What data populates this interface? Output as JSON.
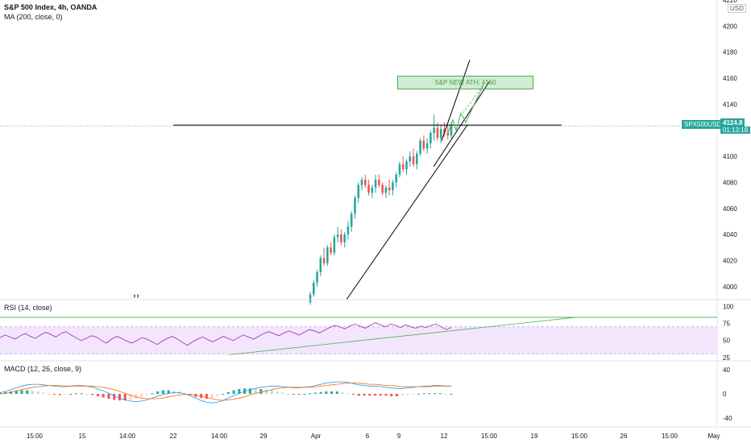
{
  "header": {
    "title": "S&P 500 Index, 4h, OANDA",
    "indicator": "MA (200, close, 0)",
    "unit": "USD"
  },
  "price_tag": {
    "symbol": "SPX500USD",
    "value": "4124.8",
    "countdown": "01:13:18"
  },
  "annotation": {
    "text": "S&P NEW ATH: 4160"
  },
  "panes": {
    "rsi_label": "RSI (14, close)",
    "macd_label": "MACD (12, 26, close, 9)"
  },
  "colors": {
    "up": "#26a69a",
    "down": "#ef5350",
    "rsi_line": "#9c27b0",
    "rsi_band": "#f3e5fc",
    "macd_line": "#2196f3",
    "signal_line": "#ff6d00",
    "trendline": "#000000",
    "green_line": "#4caf50"
  },
  "chart_data": [
    {
      "type": "candlestick",
      "title": "S&P 500 Index, 4h, OANDA",
      "ylim": [
        3990,
        4220
      ],
      "y_ticks": [
        4220,
        4200,
        4180,
        4160,
        4140,
        4120,
        4100,
        4080,
        4060,
        4040,
        4020,
        4000
      ],
      "x_ticks": [
        "15:00",
        "15",
        "14:00",
        "22",
        "14:00",
        "29",
        "Apr",
        "6",
        "9",
        "12",
        "15:00",
        "19",
        "15:00",
        "26",
        "15:00",
        "May"
      ],
      "resistance_level": 4124,
      "last_price": 4124.8,
      "target_label": "S&P NEW ATH: 4160",
      "candles": [
        [
          3988,
          3996,
          3986,
          3994
        ],
        [
          3994,
          4005,
          3992,
          4003
        ],
        [
          4003,
          4013,
          4000,
          4011
        ],
        [
          4011,
          4024,
          4008,
          4022
        ],
        [
          4022,
          4030,
          4016,
          4018
        ],
        [
          4018,
          4032,
          4016,
          4030
        ],
        [
          4030,
          4034,
          4024,
          4026
        ],
        [
          4026,
          4040,
          4024,
          4038
        ],
        [
          4038,
          4046,
          4034,
          4040
        ],
        [
          4040,
          4044,
          4032,
          4034
        ],
        [
          4034,
          4042,
          4030,
          4040
        ],
        [
          4040,
          4050,
          4036,
          4046
        ],
        [
          4046,
          4058,
          4042,
          4056
        ],
        [
          4056,
          4070,
          4052,
          4068
        ],
        [
          4068,
          4080,
          4064,
          4078
        ],
        [
          4078,
          4084,
          4074,
          4082
        ],
        [
          4082,
          4086,
          4076,
          4078
        ],
        [
          4078,
          4082,
          4070,
          4072
        ],
        [
          4072,
          4078,
          4068,
          4076
        ],
        [
          4076,
          4086,
          4072,
          4082
        ],
        [
          4082,
          4086,
          4076,
          4078
        ],
        [
          4078,
          4080,
          4070,
          4072
        ],
        [
          4072,
          4078,
          4068,
          4076
        ],
        [
          4076,
          4082,
          4070,
          4074
        ],
        [
          4074,
          4082,
          4070,
          4080
        ],
        [
          4080,
          4088,
          4076,
          4086
        ],
        [
          4086,
          4096,
          4084,
          4094
        ],
        [
          4094,
          4100,
          4088,
          4090
        ],
        [
          4090,
          4098,
          4086,
          4096
        ],
        [
          4096,
          4104,
          4092,
          4100
        ],
        [
          4100,
          4106,
          4092,
          4094
        ],
        [
          4094,
          4104,
          4090,
          4102
        ],
        [
          4102,
          4114,
          4100,
          4112
        ],
        [
          4112,
          4116,
          4104,
          4106
        ],
        [
          4106,
          4114,
          4102,
          4110
        ],
        [
          4110,
          4120,
          4106,
          4118
        ],
        [
          4118,
          4132,
          4112,
          4122
        ],
        [
          4122,
          4126,
          4112,
          4114
        ],
        [
          4114,
          4124,
          4110,
          4121
        ],
        [
          4121,
          4126,
          4115,
          4118
        ],
        [
          4118,
          4124,
          4113,
          4116
        ],
        [
          4116,
          4126,
          4114,
          4124.8
        ]
      ]
    },
    {
      "type": "line",
      "title": "RSI (14, close)",
      "ylim": [
        20,
        110
      ],
      "y_ticks": [
        100,
        75,
        50,
        25
      ],
      "bands": [
        30,
        70
      ],
      "values": [
        54,
        58,
        55,
        52,
        57,
        60,
        56,
        53,
        58,
        62,
        59,
        55,
        60,
        63,
        58,
        54,
        50,
        53,
        57,
        55,
        50,
        46,
        52,
        56,
        53,
        49,
        46,
        50,
        54,
        52,
        48,
        44,
        49,
        53,
        56,
        52,
        47,
        43,
        48,
        52,
        55,
        51,
        48,
        52,
        56,
        53,
        50,
        54,
        58,
        55,
        52,
        56,
        60,
        63,
        60,
        57,
        61,
        64,
        61,
        58,
        62,
        66,
        64,
        61,
        65,
        69,
        72,
        70,
        67,
        71,
        74,
        71,
        68,
        72,
        76,
        73,
        70,
        74,
        72,
        69,
        73,
        70,
        68,
        71,
        69,
        72,
        74,
        70,
        66,
        69
      ]
    },
    {
      "type": "bar",
      "title": "MACD (12, 26, close, 9)",
      "ylim": [
        -55,
        55
      ],
      "y_ticks": [
        40,
        0,
        -40
      ],
      "macd": [
        2,
        4,
        7,
        10,
        13,
        15,
        16,
        16,
        15,
        14,
        13,
        12,
        12,
        13,
        14,
        14,
        13,
        11,
        8,
        5,
        1,
        -3,
        -7,
        -10,
        -12,
        -13,
        -12,
        -10,
        -7,
        -4,
        -1,
        1,
        2,
        2,
        0,
        -3,
        -7,
        -11,
        -14,
        -15,
        -14,
        -11,
        -7,
        -3,
        1,
        4,
        7,
        9,
        11,
        12,
        13,
        13,
        12,
        11,
        10,
        10,
        11,
        12,
        14,
        16,
        18,
        19,
        20,
        20,
        19,
        17,
        15,
        14,
        13,
        13,
        12,
        11,
        10,
        9,
        9,
        10,
        11,
        12,
        13,
        13,
        14,
        14,
        13,
        13
      ],
      "signal": [
        0,
        1,
        3,
        5,
        7,
        9,
        11,
        12,
        13,
        14,
        14,
        14,
        13,
        13,
        13,
        13,
        13,
        13,
        12,
        11,
        9,
        7,
        4,
        1,
        -2,
        -5,
        -7,
        -8,
        -8,
        -8,
        -7,
        -5,
        -3,
        -2,
        -1,
        -1,
        -2,
        -4,
        -6,
        -8,
        -10,
        -11,
        -10,
        -9,
        -7,
        -5,
        -2,
        1,
        3,
        5,
        7,
        9,
        10,
        11,
        11,
        11,
        11,
        11,
        12,
        13,
        14,
        15,
        16,
        17,
        18,
        18,
        18,
        17,
        16,
        16,
        15,
        14,
        14,
        13,
        12,
        12,
        12,
        12,
        12,
        12,
        13,
        13,
        13,
        13
      ]
    }
  ]
}
